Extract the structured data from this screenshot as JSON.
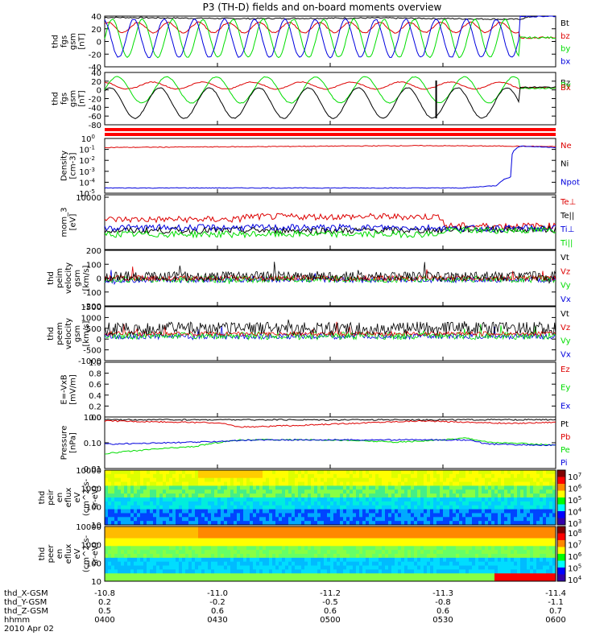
{
  "title": "P3 (TH-D) fields and on-board moments overview",
  "colors": {
    "black": "#000000",
    "red": "#dd0000",
    "green": "#00dd00",
    "blue": "#0000dd",
    "flag": "#ff0000"
  },
  "x_axis": {
    "start": "04:00",
    "end": "06:00",
    "label_rows": [
      {
        "name": "thd_X-GSM",
        "values": [
          "-10.8",
          "-11.0",
          "-11.2",
          "-11.3",
          "-11.4"
        ]
      },
      {
        "name": "thd_Y-GSM",
        "values": [
          "0.2",
          "-0.2",
          "-0.5",
          "-0.8",
          "-1.1"
        ]
      },
      {
        "name": "thd_Z-GSM",
        "values": [
          "0.5",
          "0.6",
          "0.6",
          "0.6",
          "0.7"
        ]
      },
      {
        "name": "hhmm",
        "values": [
          "0400",
          "0430",
          "0500",
          "0530",
          "0600"
        ]
      }
    ],
    "date": "2010 Apr 02"
  },
  "chart_data": [
    {
      "type": "line",
      "ylabel": [
        "thd",
        "fgs",
        "gsm",
        "[nT]"
      ],
      "ylim": [
        -40,
        40
      ],
      "yticks": [
        "40",
        "20",
        "0",
        "-20",
        "-40"
      ],
      "legend": [
        {
          "name": "Bt",
          "color": "black"
        },
        {
          "name": "bz",
          "color": "red"
        },
        {
          "name": "by",
          "color": "green"
        },
        {
          "name": "bx",
          "color": "blue"
        }
      ],
      "series": [
        {
          "name": "Bt",
          "values": [
            [
              0,
              38
            ],
            [
              0.3,
              36
            ],
            [
              0.6,
              37
            ],
            [
              0.92,
              35
            ],
            [
              0.95,
              40
            ],
            [
              1,
              42
            ]
          ]
        },
        {
          "name": "bz",
          "amplitude": 8,
          "offset": 22,
          "after": 6
        },
        {
          "name": "by",
          "amplitude": 30,
          "offset": 5,
          "after": 6
        },
        {
          "name": "bx",
          "amplitude": 30,
          "offset": 5,
          "after": 40
        }
      ],
      "oscillation": {
        "period": 0.067,
        "end": 0.92
      }
    },
    {
      "type": "line",
      "ylabel": [
        "thd",
        "fgs",
        "gsm",
        "[nT]"
      ],
      "ylim": [
        -80,
        40
      ],
      "yticks": [
        "40",
        "20",
        "0",
        "-20",
        "-40",
        "-60",
        "-80"
      ],
      "legend": [
        {
          "name": "Bz",
          "color": "black"
        },
        {
          "name": "By",
          "color": "green"
        },
        {
          "name": "Bx",
          "color": "red"
        }
      ],
      "series": [
        {
          "name": "Bx",
          "amplitude": 8,
          "offset": 10,
          "after": 5
        },
        {
          "name": "By",
          "amplitude": 30,
          "offset": 0,
          "after": 4
        },
        {
          "name": "Bz",
          "amplitude": 35,
          "offset": -30,
          "after": 6
        }
      ],
      "oscillation": {
        "period": 0.11,
        "end": 0.92
      }
    },
    {
      "type": "line",
      "ylabel": [
        "Density",
        "[cm-3]"
      ],
      "yscale": "log",
      "ylim": [
        1e-05,
        1
      ],
      "yticks": [
        "10^0",
        "10^-1",
        "10^-2",
        "10^-3",
        "10^-4",
        "10^-5"
      ],
      "legend": [
        {
          "name": "Ne",
          "color": "red"
        },
        {
          "name": "Ni",
          "color": "black"
        },
        {
          "name": "Npot",
          "color": "blue"
        }
      ],
      "series": [
        {
          "name": "Ne",
          "values": [
            [
              0,
              0.15
            ],
            [
              0.35,
              0.18
            ],
            [
              0.5,
              0.2
            ],
            [
              0.7,
              0.22
            ],
            [
              0.9,
              0.2
            ],
            [
              1,
              0.18
            ]
          ]
        },
        {
          "name": "Npot",
          "values": [
            [
              0,
              3e-05
            ],
            [
              0.8,
              3e-05
            ],
            [
              0.87,
              5e-05
            ],
            [
              0.9,
              0.0003
            ],
            [
              0.92,
              0.2
            ],
            [
              1,
              0.15
            ]
          ]
        }
      ]
    },
    {
      "type": "line",
      "ylabel": [
        "mom_3",
        "[eV]"
      ],
      "yscale": "log",
      "yticks": [
        "10000"
      ],
      "legend": [
        {
          "name": "Te⊥",
          "color": "red"
        },
        {
          "name": "Te||",
          "color": "black"
        },
        {
          "name": "Ti⊥",
          "color": "blue"
        },
        {
          "name": "Ti||",
          "color": "green"
        }
      ],
      "series": [
        {
          "name": "Te⊥",
          "level": 0.55
        },
        {
          "name": "Te||",
          "level": 0.35
        },
        {
          "name": "Ti⊥",
          "level": 0.4
        },
        {
          "name": "Ti||",
          "level": 0.28
        }
      ]
    },
    {
      "type": "line",
      "ylabel": [
        "thd",
        "peim",
        "velocity",
        "gsm",
        "[km/s]"
      ],
      "ylim": [
        -200,
        200
      ],
      "yticks": [
        "200",
        "100",
        "0",
        "-100",
        "-200"
      ],
      "legend": [
        {
          "name": "Vt",
          "color": "black"
        },
        {
          "name": "Vz",
          "color": "red"
        },
        {
          "name": "Vy",
          "color": "green"
        },
        {
          "name": "Vx",
          "color": "blue"
        }
      ]
    },
    {
      "type": "line",
      "ylabel": [
        "thd",
        "peem",
        "velocity",
        "gsm",
        "[km/s]"
      ],
      "ylim": [
        -1000,
        1500
      ],
      "yticks": [
        "1500",
        "1000",
        "500",
        "0",
        "-500",
        "-1000"
      ],
      "legend": [
        {
          "name": "Vt",
          "color": "black"
        },
        {
          "name": "Vz",
          "color": "red"
        },
        {
          "name": "Vy",
          "color": "green"
        },
        {
          "name": "Vx",
          "color": "blue"
        }
      ]
    },
    {
      "type": "line",
      "ylabel": [
        "E=-VxB",
        "[mV/m]"
      ],
      "ylim": [
        0,
        1
      ],
      "yticks": [
        "1.0",
        "0.8",
        "0.6",
        "0.4",
        "0.2",
        "0.0"
      ],
      "legend": [
        {
          "name": "Ez",
          "color": "red"
        },
        {
          "name": "Ey",
          "color": "green"
        },
        {
          "name": "Ex",
          "color": "blue"
        }
      ]
    },
    {
      "type": "line",
      "ylabel": [
        "Pressure",
        "[nPa]"
      ],
      "yscale": "log",
      "ylim": [
        0.01,
        1.3
      ],
      "yticks": [
        "1.00",
        "0.10",
        "0.01"
      ],
      "legend": [
        {
          "name": "Pt",
          "color": "black"
        },
        {
          "name": "Pb",
          "color": "red"
        },
        {
          "name": "Pe",
          "color": "green"
        },
        {
          "name": "Pi",
          "color": "blue"
        }
      ],
      "series": [
        {
          "name": "Pt",
          "values": [
            [
              0,
              1.0
            ],
            [
              0.9,
              1.0
            ],
            [
              1,
              1.0
            ]
          ]
        },
        {
          "name": "Pb",
          "values": [
            [
              0,
              0.9
            ],
            [
              0.25,
              0.75
            ],
            [
              0.3,
              0.5
            ],
            [
              0.45,
              0.6
            ],
            [
              0.7,
              0.9
            ],
            [
              0.9,
              0.7
            ],
            [
              1,
              0.8
            ]
          ]
        },
        {
          "name": "Pe",
          "values": [
            [
              0,
              0.04
            ],
            [
              0.2,
              0.08
            ],
            [
              0.3,
              0.15
            ],
            [
              0.5,
              0.15
            ],
            [
              0.65,
              0.12
            ],
            [
              0.75,
              0.15
            ],
            [
              0.8,
              0.18
            ],
            [
              0.85,
              0.12
            ],
            [
              1,
              0.09
            ]
          ]
        },
        {
          "name": "Pi",
          "values": [
            [
              0,
              0.1
            ],
            [
              0.2,
              0.12
            ],
            [
              0.35,
              0.15
            ],
            [
              0.6,
              0.15
            ],
            [
              0.8,
              0.15
            ],
            [
              0.85,
              0.1
            ],
            [
              1,
              0.09
            ]
          ]
        }
      ]
    },
    {
      "type": "heatmap",
      "ylabel": [
        "thd",
        "peir",
        "en",
        "eflux",
        "eV",
        "(cm^2-s-",
        "sr-eV)"
      ],
      "yscale": "log",
      "ylim": [
        7,
        20000
      ],
      "yticks": [
        "10000",
        "1000",
        "100",
        "10"
      ],
      "colorbar": {
        "labels": [
          "10^7",
          "10^6",
          "10^5",
          "10^4",
          "10^3"
        ]
      }
    },
    {
      "type": "heatmap",
      "ylabel": [
        "thd",
        "peer",
        "en",
        "eflux",
        "eV",
        "(cm^2-s-",
        "sr-eV)"
      ],
      "yscale": "log",
      "ylim": [
        7,
        20000
      ],
      "yticks": [
        "10000",
        "1000",
        "100",
        "10"
      ],
      "colorbar": {
        "labels": [
          "10^8",
          "10^7",
          "10^6",
          "10^5",
          "10^4"
        ]
      }
    }
  ]
}
